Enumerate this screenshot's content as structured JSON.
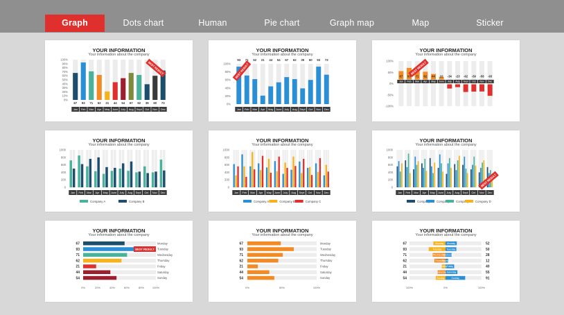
{
  "tabs": [
    {
      "label": "Graph",
      "active": true
    },
    {
      "label": "Dots chart",
      "active": false
    },
    {
      "label": "Human",
      "active": false
    },
    {
      "label": "Pie chart",
      "active": false
    },
    {
      "label": "Graph map",
      "active": false
    },
    {
      "label": "Map",
      "active": false
    },
    {
      "label": "Sticker",
      "active": false
    }
  ],
  "colors": {
    "accent": "#e0302e",
    "navy": "#1d4e6e",
    "blue": "#2b8fd6",
    "teal": "#4ab19b",
    "orange": "#f28a25",
    "yellow": "#f5b21a",
    "red": "#e0302e",
    "dark_red": "#9c1f2e",
    "olive": "#7f8a3c",
    "dark_gray": "#3a3a3a"
  },
  "card_title": "YOUR INFORMATION",
  "card_subtitle": "Your information about the company",
  "months": [
    "Jan",
    "Feb",
    "Mar",
    "Apr",
    "May",
    "June",
    "July",
    "Aug",
    "Sept",
    "Oct",
    "Nov",
    "Dec"
  ],
  "days": [
    "Monday",
    "Tuesday",
    "Wednesday",
    "Thursday",
    "Friday",
    "Saturday",
    "Sunday"
  ],
  "sticker_text": "BEST RESULT",
  "chart_data": [
    {
      "id": "card1",
      "type": "bar",
      "categories": [
        "Jan",
        "Feb",
        "Mar",
        "Apr",
        "May",
        "June",
        "July",
        "Aug",
        "Sept",
        "Oct",
        "Nov",
        "Dec"
      ],
      "values": [
        67,
        93,
        71,
        62,
        21,
        44,
        54,
        67,
        62,
        39,
        60,
        73
      ],
      "labels": [
        "67",
        "93",
        "71",
        "62",
        "21",
        "44",
        "54",
        "67",
        "62",
        "39",
        "60",
        "73"
      ],
      "yticks": [
        "100%",
        "90%",
        "80%",
        "70%",
        "60%",
        "50%",
        "40%",
        "30%",
        "20%",
        "10%",
        "0%"
      ],
      "ylim": [
        0,
        100
      ]
    },
    {
      "id": "card2",
      "type": "bar",
      "categories": [
        "Jan",
        "Feb",
        "Mar",
        "Apr",
        "May",
        "June",
        "July",
        "Aug",
        "Sept",
        "Oct",
        "Nov",
        "Dec"
      ],
      "values": [
        93,
        71,
        62,
        21,
        44,
        54,
        67,
        62,
        39,
        60,
        93,
        73
      ],
      "labels": [
        "93",
        "71",
        "62",
        "21",
        "44",
        "54",
        "67",
        "62",
        "39",
        "60",
        "93",
        "73"
      ],
      "yticks": [
        "100%",
        "80%",
        "60%",
        "40%",
        "20%",
        "0%"
      ],
      "ylim": [
        0,
        100
      ]
    },
    {
      "id": "card3",
      "type": "bar",
      "categories": [
        "Jan",
        "Feb",
        "Mar",
        "Apr",
        "May",
        "June",
        "July",
        "Aug",
        "Sept",
        "Oct",
        "Nov",
        "Dec"
      ],
      "values": [
        67,
        93,
        71,
        62,
        44,
        22,
        -34,
        -23,
        -62,
        -59,
        -58,
        -93
      ],
      "labels": [
        "67",
        "93",
        "71",
        "62",
        "44",
        "22",
        "-34",
        "-23",
        "-62",
        "-59",
        "-58",
        "-93"
      ],
      "yticks": [
        "100%",
        "50%",
        "0%",
        "-50%",
        "-100%"
      ],
      "ylim": [
        -100,
        100
      ]
    },
    {
      "id": "card4",
      "type": "bar",
      "categories": [
        "Jan",
        "Feb",
        "Mar",
        "Apr",
        "May",
        "June",
        "July",
        "Aug",
        "Sept",
        "Oct",
        "Nov",
        "Dec"
      ],
      "yticks": [
        "1000",
        "800",
        "600",
        "400",
        "200",
        "0"
      ],
      "ylim": [
        0,
        1000
      ],
      "series": [
        {
          "name": "Company A",
          "values": [
            720,
            850,
            560,
            430,
            360,
            440,
            500,
            440,
            400,
            560,
            400,
            740
          ]
        },
        {
          "name": "Company B",
          "values": [
            500,
            620,
            760,
            800,
            540,
            520,
            640,
            690,
            420,
            380,
            420,
            450
          ]
        }
      ]
    },
    {
      "id": "card5",
      "type": "bar",
      "categories": [
        "Jan",
        "Feb",
        "Mar",
        "Apr",
        "May",
        "June",
        "July",
        "Aug",
        "Sept",
        "Oct",
        "Nov",
        "Dec"
      ],
      "yticks": [
        "1000",
        "800",
        "600",
        "400",
        "200",
        "0"
      ],
      "ylim": [
        0,
        1000
      ],
      "series": [
        {
          "name": "Company A",
          "values": [
            620,
            880,
            560,
            640,
            530,
            700,
            360,
            470,
            690,
            520,
            640,
            320
          ]
        },
        {
          "name": "Company B",
          "values": [
            320,
            560,
            940,
            460,
            760,
            430,
            660,
            820,
            380,
            540,
            410,
            600
          ]
        },
        {
          "name": "Company C",
          "values": [
            560,
            280,
            480,
            840,
            390,
            820,
            520,
            570,
            760,
            330,
            780,
            420
          ]
        }
      ]
    },
    {
      "id": "card6",
      "type": "bar",
      "categories": [
        "Jan",
        "Feb",
        "Mar",
        "Apr",
        "May",
        "June",
        "July",
        "Aug",
        "Sept",
        "Oct",
        "Nov",
        "Dec"
      ],
      "yticks": [
        "1000",
        "800",
        "600",
        "400",
        "200",
        "0"
      ],
      "ylim": [
        0,
        1000
      ],
      "series": [
        {
          "name": "Company A",
          "values": [
            560,
            720,
            480,
            640,
            780,
            520,
            360,
            620,
            600,
            480,
            400,
            540
          ]
        },
        {
          "name": "Company B",
          "values": [
            700,
            540,
            820,
            520,
            560,
            880,
            640,
            460,
            820,
            600,
            520,
            380
          ]
        },
        {
          "name": "Company C",
          "values": [
            420,
            900,
            600,
            760,
            380,
            640,
            780,
            720,
            500,
            820,
            660,
            460
          ]
        },
        {
          "name": "Company D",
          "values": [
            640,
            380,
            700,
            440,
            660,
            420,
            520,
            840,
            380,
            580,
            720,
            300
          ]
        }
      ]
    },
    {
      "id": "card7",
      "type": "bar",
      "orientation": "horizontal",
      "categories": [
        "Monday",
        "Tuesday",
        "Wednesday",
        "Thursday",
        "Friday",
        "Saturday",
        "Sunday"
      ],
      "values": [
        67,
        93,
        71,
        62,
        21,
        44,
        54
      ],
      "labels": [
        "67",
        "93",
        "71",
        "62",
        "21",
        "44",
        "54"
      ],
      "xticks": [
        "0%",
        "20%",
        "40%",
        "60%",
        "80%",
        "100%"
      ],
      "xlim": [
        0,
        100
      ]
    },
    {
      "id": "card8",
      "type": "bar",
      "orientation": "horizontal",
      "categories": [
        "Monday",
        "Tuesday",
        "Wednesday",
        "Thursday",
        "Friday",
        "Saturday",
        "Sunday"
      ],
      "values": [
        67,
        93,
        71,
        62,
        21,
        44,
        54
      ],
      "labels": [
        "67",
        "93",
        "71",
        "62",
        "21",
        "44",
        "54"
      ],
      "xticks": [
        "0%",
        "50%",
        "100%"
      ],
      "xlim": [
        0,
        100
      ]
    },
    {
      "id": "card9",
      "type": "bar",
      "orientation": "horizontal",
      "categories": [
        "Monday",
        "Tuesday",
        "Wednesday",
        "Thursday",
        "Friday",
        "Saturday",
        "Sunday"
      ],
      "left_values": [
        67,
        93,
        71,
        62,
        21,
        44,
        54
      ],
      "right_values": [
        52,
        50,
        28,
        12,
        40,
        55,
        91
      ],
      "left_labels": [
        "67",
        "93",
        "71",
        "62",
        "21",
        "44",
        "54"
      ],
      "right_labels": [
        "52",
        "50",
        "28",
        "12",
        "40",
        "55",
        "91"
      ],
      "xticks": [
        "100%",
        "0%",
        "100%"
      ],
      "xlim": [
        -100,
        100
      ]
    }
  ]
}
